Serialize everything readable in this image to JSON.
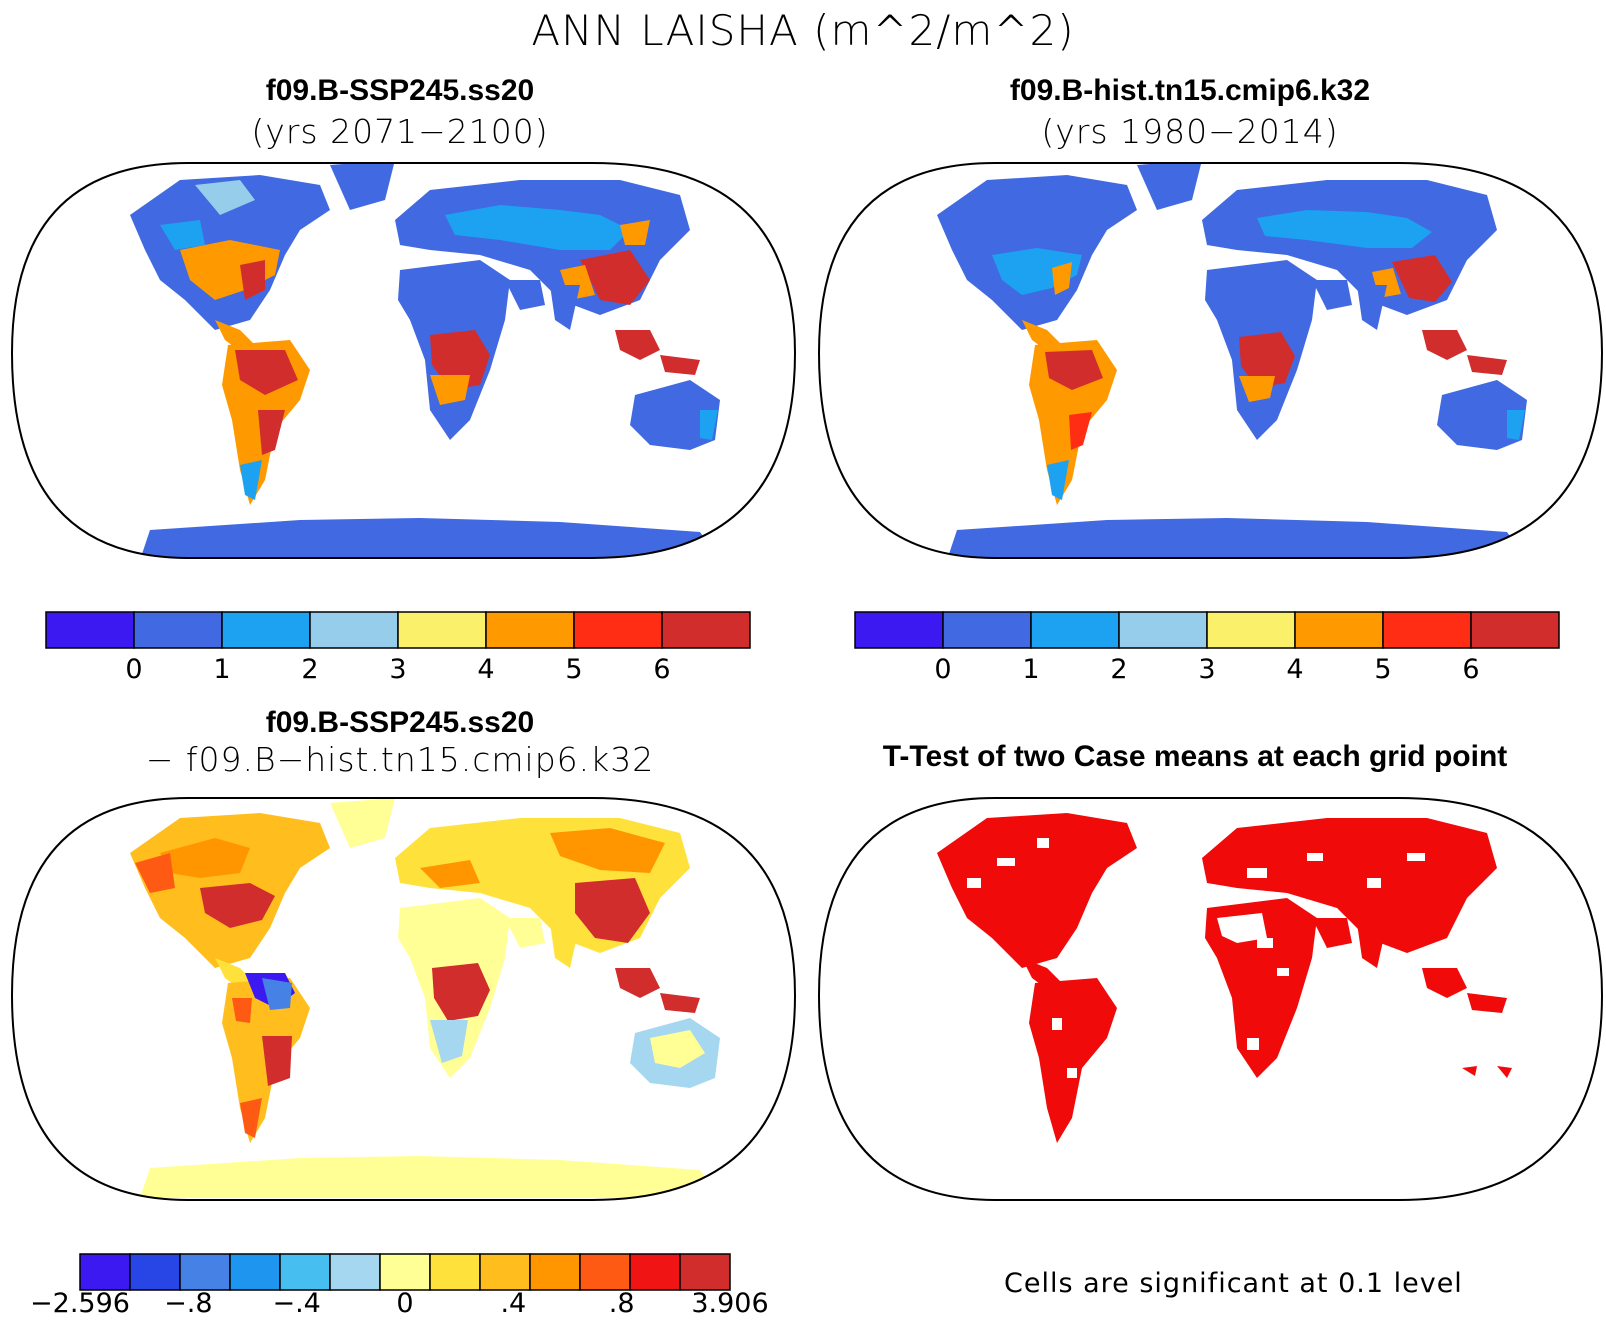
{
  "figure": {
    "title": "ANN LAISHA (m^2/m^2)"
  },
  "panels": {
    "top_left": {
      "title": "f09.B-SSP245.ss20",
      "subtitle": "(yrs 2071−2100)"
    },
    "top_right": {
      "title": "f09.B-hist.tn15.cmip6.k32",
      "subtitle": "(yrs 1980−2014)"
    },
    "bottom_left": {
      "title": "f09.B-SSP245.ss20",
      "subtitle": "− f09.B−hist.tn15.cmip6.k32"
    },
    "bottom_right": {
      "title": "T-Test of two Case means at each grid point",
      "footnote": "Cells are significant at 0.1 level"
    }
  },
  "colorbars": {
    "absolute": {
      "colors": [
        "#3c19f0",
        "#4169e1",
        "#1ca2f0",
        "#96cdeb",
        "#faf069",
        "#ff9900",
        "#ff2d14",
        "#d22d2d"
      ],
      "labels": [
        "0",
        "1",
        "2",
        "3",
        "4",
        "5",
        "6"
      ]
    },
    "difference": {
      "colors": [
        "#3c19f0",
        "#2846e6",
        "#4682e6",
        "#1e96f0",
        "#46bef0",
        "#a5d7f0",
        "#ffff96",
        "#ffe13c",
        "#ffbe1e",
        "#ff9600",
        "#ff5a14",
        "#f01414",
        "#d22d2d"
      ],
      "labels": [
        "−2.596",
        "−.8",
        "−.4",
        "0",
        ".4",
        ".8",
        "3.906"
      ]
    },
    "significance_fill": "#f00a0a",
    "ocean": "#ffffff"
  }
}
